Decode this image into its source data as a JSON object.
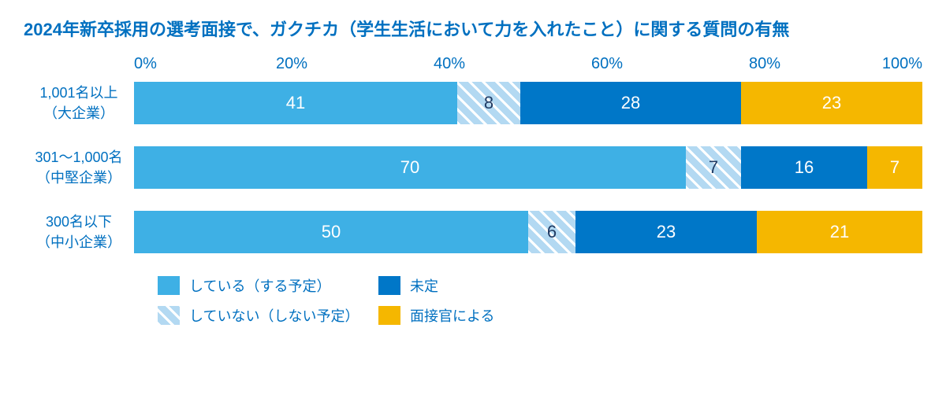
{
  "chart": {
    "type": "stacked-bar-horizontal",
    "title": "2024年新卒採用の選考面接で、ガクチカ（学生生活において力を入れたこと）に関する質問の有無",
    "title_color": "#0070c0",
    "title_fontsize": 22,
    "background_color": "#ffffff",
    "label_color": "#0070c0",
    "value_fontsize": 22,
    "axis": {
      "min": 0,
      "max": 100,
      "ticks": [
        {
          "value": 0,
          "label": "0%"
        },
        {
          "value": 20,
          "label": "20%"
        },
        {
          "value": 40,
          "label": "40%"
        },
        {
          "value": 60,
          "label": "60%"
        },
        {
          "value": 80,
          "label": "80%"
        },
        {
          "value": 100,
          "label": "100%"
        }
      ],
      "fontsize": 20
    },
    "series": [
      {
        "key": "doing",
        "label": "している（する予定）",
        "fill": "#3eb0e5",
        "pattern": "solid",
        "text_color": "#ffffff"
      },
      {
        "key": "not_doing",
        "label": "していない（しない予定）",
        "fill": "#b3d9f2",
        "pattern": "hatch",
        "text_color": "#1f3a63"
      },
      {
        "key": "undecided",
        "label": "未定",
        "fill": "#0077c8",
        "pattern": "solid",
        "text_color": "#ffffff"
      },
      {
        "key": "depends",
        "label": "面接官による",
        "fill": "#f5b700",
        "pattern": "solid",
        "text_color": "#ffffff"
      }
    ],
    "categories": [
      {
        "label_line1": "1,001名以上",
        "label_line2": "（大企業）",
        "values": {
          "doing": 41,
          "not_doing": 8,
          "undecided": 28,
          "depends": 23
        }
      },
      {
        "label_line1": "301～1,000名",
        "label_line2": "（中堅企業）",
        "values": {
          "doing": 70,
          "not_doing": 7,
          "undecided": 16,
          "depends": 7
        }
      },
      {
        "label_line1": "300名以下",
        "label_line2": "（中小企業）",
        "values": {
          "doing": 50,
          "not_doing": 6,
          "undecided": 23,
          "depends": 21
        }
      }
    ],
    "legend": {
      "order": [
        [
          "doing",
          "undecided"
        ],
        [
          "not_doing",
          "depends"
        ]
      ],
      "swatch_w": 28,
      "swatch_h": 24,
      "fontsize": 18
    }
  }
}
